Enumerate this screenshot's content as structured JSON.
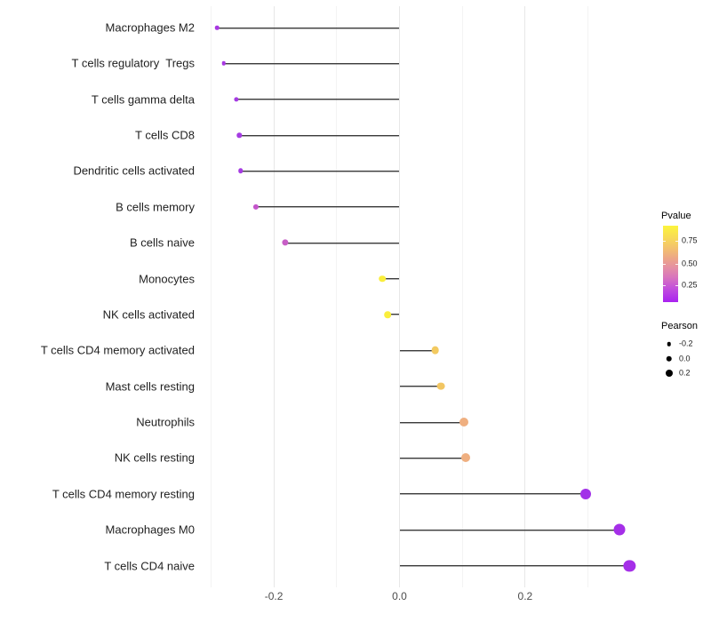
{
  "chart_data": {
    "type": "scatter",
    "subtype": "horizontal-lollipop",
    "title": "",
    "xlabel": "",
    "ylabel": "",
    "x_tick_labels": [
      "-0.2",
      "0.0",
      "0.2"
    ],
    "x_tick_values": [
      -0.2,
      0.0,
      0.2
    ],
    "x_minor_gridlines": [
      -0.3,
      -0.1,
      0.1,
      0.3
    ],
    "xlim": [
      -0.32,
      0.4
    ],
    "grid": "vertical-only",
    "baseline_x": 0,
    "color_scale": {
      "maps": "Pvalue",
      "direction": "yellow-high-to-purple-low",
      "stops": [
        "#fcf43c",
        "#f2bc72",
        "#e48fa4",
        "#c24fdc",
        "#a922f0"
      ]
    },
    "size_scale": {
      "maps": "Pearson",
      "legend_values": [
        -0.2,
        0.0,
        0.2
      ]
    },
    "points": [
      {
        "category": "Macrophages M2",
        "pearson": -0.29,
        "pvalue": 0.12,
        "color": "#a838e2",
        "d": 4.5
      },
      {
        "category": "T cells regulatory  Tregs",
        "pearson": -0.28,
        "pvalue": 0.12,
        "color": "#a838e2",
        "d": 4.5
      },
      {
        "category": "T cells gamma delta",
        "pearson": -0.26,
        "pvalue": 0.15,
        "color": "#a53be2",
        "d": 5.2
      },
      {
        "category": "T cells CD8",
        "pearson": -0.255,
        "pvalue": 0.15,
        "color": "#a53be2",
        "d": 5.4
      },
      {
        "category": "Dendritic cells activated",
        "pearson": -0.253,
        "pvalue": 0.15,
        "color": "#a53be2",
        "d": 5.5
      },
      {
        "category": "B cells memory",
        "pearson": -0.229,
        "pvalue": 0.32,
        "color": "#c455cb",
        "d": 6.2
      },
      {
        "category": "B cells naive",
        "pearson": -0.182,
        "pvalue": 0.35,
        "color": "#c75ec6",
        "d": 7.2
      },
      {
        "category": "Monocytes",
        "pearson": -0.027,
        "pvalue": 0.88,
        "color": "#faee3c",
        "d": 7.6
      },
      {
        "category": "NK cells activated",
        "pearson": -0.019,
        "pvalue": 0.88,
        "color": "#faee3c",
        "d": 7.6
      },
      {
        "category": "T cells CD4 memory activated",
        "pearson": 0.057,
        "pvalue": 0.75,
        "color": "#f3ca60",
        "d": 8.7
      },
      {
        "category": "Mast cells resting",
        "pearson": 0.066,
        "pvalue": 0.74,
        "color": "#f2c662",
        "d": 8.8
      },
      {
        "category": "Neutrophils",
        "pearson": 0.103,
        "pvalue": 0.58,
        "color": "#efaf80",
        "d": 10.0
      },
      {
        "category": "NK cells resting",
        "pearson": 0.105,
        "pvalue": 0.58,
        "color": "#efaf80",
        "d": 10.0
      },
      {
        "category": "T cells CD4 memory resting",
        "pearson": 0.296,
        "pvalue": 0.1,
        "color": "#a232e8",
        "d": 12.0
      },
      {
        "category": "Macrophages M0",
        "pearson": 0.35,
        "pvalue": 0.1,
        "color": "#a52fe8",
        "d": 13.0
      },
      {
        "category": "T cells CD4 naive",
        "pearson": 0.366,
        "pvalue": 0.1,
        "color": "#a52fe8",
        "d": 13.3
      }
    ]
  },
  "legend": {
    "pvalue": {
      "title": "Pvalue",
      "tick_labels": [
        "0.75",
        "0.50",
        "0.25"
      ]
    },
    "pearson": {
      "title": "Pearson",
      "items": [
        {
          "label": "-0.2",
          "d": 4.5
        },
        {
          "label": "0.0",
          "d": 6.5
        },
        {
          "label": "0.2",
          "d": 8.0
        }
      ]
    }
  }
}
